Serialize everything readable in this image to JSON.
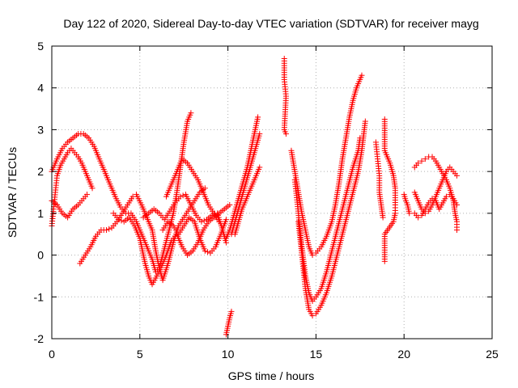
{
  "chart_data": {
    "type": "scatter",
    "title": "Day 122 of 2020, Sidereal Day-to-day VTEC variation (SDTVAR) for receiver mayg",
    "xlabel": "GPS time / hours",
    "ylabel": "SDTVAR / TECUs",
    "xlim": [
      0,
      25
    ],
    "ylim": [
      -2,
      5
    ],
    "xticks": [
      0,
      5,
      10,
      15,
      20,
      25
    ],
    "yticks": [
      -2,
      -1,
      0,
      1,
      2,
      3,
      4,
      5
    ],
    "xtick_labels": [
      "0",
      "5",
      "10",
      "15",
      "20",
      "25"
    ],
    "ytick_labels": [
      "-2",
      "-1",
      "0",
      "1",
      "2",
      "3",
      "4",
      "5"
    ],
    "grid": true,
    "legend": "none",
    "marker": "+",
    "marker_color": "#ff0000",
    "series": [
      {
        "points": [
          [
            0.0,
            0.7
          ],
          [
            0.1,
            1.1
          ],
          [
            0.2,
            1.5
          ],
          [
            0.3,
            1.9
          ],
          [
            0.5,
            2.15
          ],
          [
            0.7,
            2.3
          ],
          [
            0.9,
            2.45
          ],
          [
            1.1,
            2.55
          ],
          [
            1.3,
            2.45
          ],
          [
            1.5,
            2.35
          ],
          [
            1.7,
            2.2
          ],
          [
            1.9,
            2.0
          ],
          [
            2.1,
            1.8
          ],
          [
            2.3,
            1.6
          ]
        ]
      },
      {
        "points": [
          [
            0.0,
            2.0
          ],
          [
            0.3,
            2.3
          ],
          [
            0.6,
            2.55
          ],
          [
            0.9,
            2.7
          ],
          [
            1.2,
            2.8
          ],
          [
            1.5,
            2.9
          ],
          [
            1.8,
            2.9
          ],
          [
            2.1,
            2.8
          ],
          [
            2.4,
            2.6
          ],
          [
            2.7,
            2.3
          ],
          [
            3.0,
            2.0
          ],
          [
            3.3,
            1.7
          ],
          [
            3.6,
            1.4
          ],
          [
            3.9,
            1.15
          ],
          [
            4.2,
            1.0
          ],
          [
            4.5,
            1.0
          ],
          [
            4.8,
            0.8
          ],
          [
            5.1,
            0.5
          ],
          [
            5.4,
            0.2
          ],
          [
            5.7,
            -0.1
          ],
          [
            5.9,
            -0.4
          ],
          [
            6.1,
            -0.3
          ],
          [
            6.3,
            0.0
          ],
          [
            6.6,
            0.5
          ],
          [
            6.9,
            1.0
          ],
          [
            7.1,
            1.5
          ],
          [
            7.3,
            2.1
          ],
          [
            7.5,
            2.7
          ],
          [
            7.7,
            3.2
          ],
          [
            7.9,
            3.4
          ]
        ]
      },
      {
        "points": [
          [
            0.0,
            1.3
          ],
          [
            0.3,
            1.2
          ],
          [
            0.6,
            1.0
          ],
          [
            0.9,
            0.9
          ],
          [
            1.2,
            1.1
          ],
          [
            1.5,
            1.2
          ],
          [
            1.8,
            1.35
          ],
          [
            2.0,
            1.45
          ]
        ]
      },
      {
        "points": [
          [
            1.6,
            -0.2
          ],
          [
            1.9,
            0.0
          ],
          [
            2.2,
            0.2
          ],
          [
            2.5,
            0.45
          ],
          [
            2.8,
            0.6
          ],
          [
            3.1,
            0.6
          ],
          [
            3.4,
            0.65
          ],
          [
            3.7,
            0.8
          ],
          [
            4.0,
            1.0
          ],
          [
            4.3,
            1.2
          ],
          [
            4.6,
            1.4
          ],
          [
            4.8,
            1.45
          ],
          [
            5.1,
            1.2
          ],
          [
            5.4,
            0.9
          ],
          [
            5.7,
            0.6
          ],
          [
            5.9,
            0.1
          ],
          [
            6.1,
            -0.3
          ],
          [
            6.3,
            -0.6
          ],
          [
            6.6,
            -0.2
          ],
          [
            6.9,
            0.3
          ],
          [
            7.2,
            0.7
          ],
          [
            7.5,
            0.9
          ],
          [
            7.8,
            1.1
          ],
          [
            8.1,
            1.3
          ],
          [
            8.4,
            1.5
          ],
          [
            8.7,
            1.6
          ]
        ]
      },
      {
        "points": [
          [
            3.5,
            1.0
          ],
          [
            3.8,
            0.85
          ],
          [
            4.1,
            0.8
          ],
          [
            4.4,
            0.9
          ],
          [
            4.7,
            0.7
          ],
          [
            5.0,
            0.4
          ],
          [
            5.3,
            -0.2
          ],
          [
            5.5,
            -0.5
          ],
          [
            5.7,
            -0.7
          ],
          [
            5.9,
            -0.55
          ],
          [
            6.2,
            -0.3
          ],
          [
            6.5,
            0.0
          ],
          [
            6.8,
            0.35
          ],
          [
            7.1,
            0.5
          ],
          [
            7.4,
            0.2
          ],
          [
            7.7,
            0.0
          ],
          [
            8.0,
            0.1
          ],
          [
            8.3,
            0.3
          ],
          [
            8.6,
            0.6
          ],
          [
            8.9,
            0.8
          ],
          [
            9.2,
            0.9
          ],
          [
            9.5,
            1.0
          ],
          [
            9.8,
            1.1
          ],
          [
            10.1,
            1.2
          ]
        ]
      },
      {
        "points": [
          [
            5.2,
            0.9
          ],
          [
            5.5,
            1.0
          ],
          [
            5.8,
            1.1
          ],
          [
            6.1,
            1.0
          ],
          [
            6.4,
            0.85
          ],
          [
            6.7,
            1.05
          ],
          [
            7.0,
            1.25
          ],
          [
            7.3,
            1.4
          ],
          [
            7.6,
            1.45
          ],
          [
            7.9,
            1.2
          ],
          [
            8.2,
            0.95
          ],
          [
            8.5,
            0.8
          ],
          [
            8.8,
            0.85
          ],
          [
            9.1,
            0.95
          ],
          [
            9.4,
            1.0
          ],
          [
            9.7,
            0.6
          ],
          [
            9.9,
            0.3
          ]
        ]
      },
      {
        "points": [
          [
            6.5,
            1.4
          ],
          [
            6.8,
            1.7
          ],
          [
            7.1,
            2.0
          ],
          [
            7.4,
            2.3
          ],
          [
            7.7,
            2.2
          ],
          [
            8.0,
            2.0
          ],
          [
            8.3,
            1.8
          ],
          [
            8.6,
            1.5
          ],
          [
            8.9,
            1.2
          ],
          [
            9.2,
            1.0
          ],
          [
            9.5,
            0.8
          ]
        ]
      },
      {
        "points": [
          [
            6.3,
            0.6
          ],
          [
            6.6,
            0.8
          ],
          [
            6.9,
            0.7
          ],
          [
            7.2,
            0.5
          ],
          [
            7.5,
            0.7
          ],
          [
            7.8,
            0.9
          ],
          [
            8.1,
            0.8
          ],
          [
            8.4,
            0.4
          ],
          [
            8.7,
            0.1
          ],
          [
            9.0,
            0.05
          ],
          [
            9.3,
            0.2
          ],
          [
            9.6,
            0.5
          ],
          [
            9.9,
            0.85
          ]
        ]
      },
      {
        "points": [
          [
            9.9,
            -1.9
          ],
          [
            10.0,
            -1.7
          ],
          [
            10.1,
            -1.5
          ],
          [
            10.2,
            -1.35
          ]
        ]
      },
      {
        "points": [
          [
            9.9,
            0.4
          ],
          [
            10.1,
            0.6
          ],
          [
            10.3,
            0.9
          ],
          [
            10.5,
            1.2
          ],
          [
            10.7,
            1.5
          ],
          [
            10.9,
            1.8
          ],
          [
            11.1,
            2.1
          ],
          [
            11.3,
            2.5
          ],
          [
            11.5,
            2.9
          ],
          [
            11.7,
            3.3
          ]
        ]
      },
      {
        "points": [
          [
            10.2,
            0.5
          ],
          [
            10.4,
            0.8
          ],
          [
            10.6,
            1.1
          ],
          [
            10.8,
            1.4
          ],
          [
            11.0,
            1.7
          ],
          [
            11.2,
            2.0
          ],
          [
            11.4,
            2.3
          ],
          [
            11.6,
            2.6
          ],
          [
            11.8,
            2.9
          ]
        ]
      },
      {
        "points": [
          [
            10.4,
            0.5
          ],
          [
            10.6,
            0.8
          ],
          [
            10.8,
            1.1
          ],
          [
            11.0,
            1.3
          ],
          [
            11.2,
            1.5
          ],
          [
            11.4,
            1.7
          ],
          [
            11.6,
            1.9
          ],
          [
            11.8,
            2.1
          ]
        ]
      },
      {
        "points": [
          [
            13.2,
            4.7
          ],
          [
            13.2,
            4.2
          ],
          [
            13.3,
            3.8
          ],
          [
            13.2,
            3.0
          ],
          [
            13.3,
            2.9
          ]
        ]
      },
      {
        "points": [
          [
            13.6,
            2.5
          ],
          [
            13.8,
            2.0
          ],
          [
            14.0,
            1.5
          ],
          [
            14.2,
            1.0
          ],
          [
            14.4,
            0.6
          ],
          [
            14.6,
            0.2
          ],
          [
            14.8,
            0.0
          ],
          [
            15.0,
            0.05
          ],
          [
            15.3,
            0.2
          ],
          [
            15.6,
            0.45
          ],
          [
            15.9,
            0.8
          ],
          [
            16.1,
            1.2
          ],
          [
            16.3,
            1.7
          ],
          [
            16.5,
            2.3
          ],
          [
            16.7,
            2.8
          ],
          [
            16.9,
            3.3
          ],
          [
            17.1,
            3.7
          ],
          [
            17.3,
            4.0
          ],
          [
            17.5,
            4.2
          ],
          [
            17.6,
            4.3
          ]
        ]
      },
      {
        "points": [
          [
            13.8,
            1.8
          ],
          [
            14.0,
            1.0
          ],
          [
            14.2,
            0.2
          ],
          [
            14.4,
            -0.5
          ],
          [
            14.6,
            -0.9
          ],
          [
            14.8,
            -1.1
          ],
          [
            15.0,
            -1.0
          ],
          [
            15.3,
            -0.8
          ],
          [
            15.6,
            -0.4
          ],
          [
            15.9,
            0.1
          ],
          [
            16.2,
            0.6
          ],
          [
            16.5,
            1.1
          ],
          [
            16.8,
            1.6
          ],
          [
            17.1,
            2.1
          ],
          [
            17.4,
            2.5
          ],
          [
            17.5,
            2.8
          ]
        ]
      },
      {
        "points": [
          [
            14.0,
            0.8
          ],
          [
            14.2,
            0.0
          ],
          [
            14.4,
            -0.8
          ],
          [
            14.6,
            -1.3
          ],
          [
            14.8,
            -1.45
          ],
          [
            15.0,
            -1.4
          ],
          [
            15.3,
            -1.2
          ],
          [
            15.6,
            -0.9
          ],
          [
            15.9,
            -0.5
          ],
          [
            16.2,
            0.0
          ],
          [
            16.5,
            0.5
          ],
          [
            16.8,
            1.0
          ],
          [
            17.1,
            1.5
          ],
          [
            17.4,
            2.0
          ],
          [
            17.6,
            2.5
          ],
          [
            17.8,
            3.2
          ]
        ]
      },
      {
        "points": [
          [
            18.4,
            2.7
          ],
          [
            18.5,
            2.3
          ],
          [
            18.6,
            1.9
          ],
          [
            18.6,
            1.5
          ],
          [
            18.7,
            1.2
          ],
          [
            18.8,
            0.9
          ]
        ]
      },
      {
        "points": [
          [
            18.9,
            3.25
          ],
          [
            18.9,
            2.5
          ],
          [
            19.0,
            2.4
          ],
          [
            19.1,
            2.3
          ],
          [
            19.2,
            2.2
          ],
          [
            19.3,
            2.05
          ],
          [
            19.4,
            1.9
          ],
          [
            19.5,
            1.6
          ],
          [
            19.5,
            1.2
          ],
          [
            19.5,
            1.0
          ],
          [
            19.4,
            0.8
          ],
          [
            18.9,
            0.5
          ],
          [
            18.9,
            -0.15
          ]
        ]
      },
      {
        "points": [
          [
            20.0,
            1.45
          ],
          [
            20.1,
            1.3
          ],
          [
            20.2,
            1.2
          ],
          [
            20.3,
            1.0
          ]
        ]
      },
      {
        "points": [
          [
            20.6,
            2.1
          ],
          [
            20.8,
            2.2
          ],
          [
            21.0,
            2.25
          ],
          [
            21.2,
            2.3
          ],
          [
            21.4,
            2.35
          ],
          [
            21.6,
            2.35
          ],
          [
            21.8,
            2.25
          ],
          [
            22.0,
            2.1
          ],
          [
            22.2,
            1.95
          ],
          [
            22.4,
            1.8
          ],
          [
            22.6,
            1.6
          ],
          [
            22.8,
            1.3
          ],
          [
            22.9,
            1.0
          ],
          [
            23.0,
            0.8
          ],
          [
            23.0,
            0.6
          ]
        ]
      },
      {
        "points": [
          [
            20.6,
            1.5
          ],
          [
            20.8,
            1.3
          ],
          [
            21.0,
            1.1
          ],
          [
            21.2,
            1.0
          ],
          [
            21.4,
            1.05
          ],
          [
            21.6,
            1.2
          ],
          [
            21.8,
            1.4
          ],
          [
            22.0,
            1.6
          ],
          [
            22.2,
            1.8
          ],
          [
            22.4,
            2.0
          ],
          [
            22.6,
            2.1
          ],
          [
            22.8,
            2.0
          ],
          [
            23.0,
            1.9
          ]
        ]
      },
      {
        "points": [
          [
            20.6,
            1.0
          ],
          [
            20.8,
            0.9
          ],
          [
            21.0,
            0.95
          ],
          [
            21.2,
            1.1
          ],
          [
            21.4,
            1.25
          ],
          [
            21.6,
            1.35
          ],
          [
            21.8,
            1.3
          ],
          [
            22.0,
            1.1
          ],
          [
            22.2,
            1.25
          ],
          [
            22.4,
            1.4
          ],
          [
            22.6,
            1.45
          ],
          [
            22.8,
            1.35
          ],
          [
            23.0,
            1.2
          ]
        ]
      }
    ]
  }
}
